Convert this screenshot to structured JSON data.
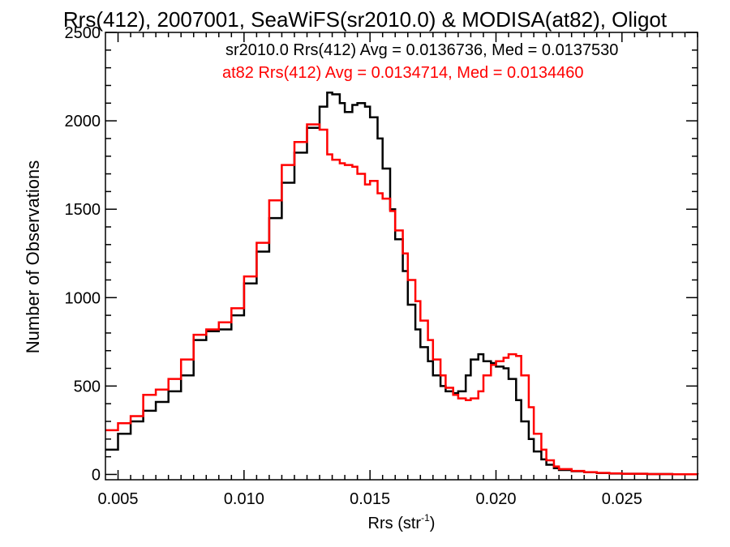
{
  "chart_data": {
    "type": "line",
    "title": "Rrs(412), 2007001, SeaWiFS(sr2010.0) & MODISA(at82), Oligot",
    "xlabel_main": "Rrs (str",
    "xlabel_sup": "-1",
    "xlabel_end": ")",
    "ylabel": "Number of Observations",
    "xlim": [
      0.0045,
      0.028
    ],
    "ylim": [
      -30,
      2500
    ],
    "x_ticks": [
      {
        "value": 0.005,
        "label": "0.005"
      },
      {
        "value": 0.01,
        "label": "0.010"
      },
      {
        "value": 0.015,
        "label": "0.015"
      },
      {
        "value": 0.02,
        "label": "0.020"
      },
      {
        "value": 0.025,
        "label": "0.025"
      }
    ],
    "y_ticks": [
      {
        "value": 0,
        "label": "0"
      },
      {
        "value": 500,
        "label": "500"
      },
      {
        "value": 1000,
        "label": "1000"
      },
      {
        "value": 1500,
        "label": "1500"
      },
      {
        "value": 2000,
        "label": "2000"
      },
      {
        "value": 2500,
        "label": "2500"
      }
    ],
    "legend": [
      {
        "text": "sr2010.0 Rrs(412) Avg = 0.0136736, Med = 0.0137530",
        "color": "#000000"
      },
      {
        "text": "at82 Rrs(412) Avg = 0.0134714, Med = 0.0134460",
        "color": "#ff0000"
      }
    ],
    "series": [
      {
        "color": "#000000",
        "x": [
          0.0045,
          0.005,
          0.0055,
          0.006,
          0.0065,
          0.007,
          0.0075,
          0.008,
          0.0085,
          0.009,
          0.0095,
          0.01,
          0.0105,
          0.011,
          0.0115,
          0.012,
          0.0125,
          0.013,
          0.0133,
          0.0135,
          0.0138,
          0.014,
          0.0143,
          0.0145,
          0.0148,
          0.015,
          0.0153,
          0.0155,
          0.0158,
          0.016,
          0.0163,
          0.0165,
          0.0168,
          0.017,
          0.0173,
          0.0175,
          0.0178,
          0.018,
          0.0183,
          0.0185,
          0.0188,
          0.019,
          0.0193,
          0.0195,
          0.0198,
          0.02,
          0.0203,
          0.0205,
          0.0208,
          0.021,
          0.0213,
          0.0215,
          0.0218,
          0.022,
          0.0223,
          0.0225,
          0.023,
          0.0235,
          0.024,
          0.0245,
          0.025,
          0.026,
          0.027,
          0.028
        ],
        "y": [
          140,
          230,
          300,
          360,
          410,
          470,
          560,
          760,
          810,
          820,
          900,
          1080,
          1260,
          1450,
          1650,
          1820,
          1960,
          2080,
          2160,
          2150,
          2100,
          2050,
          2090,
          2100,
          2080,
          2020,
          1900,
          1730,
          1500,
          1330,
          1150,
          960,
          820,
          720,
          640,
          560,
          500,
          470,
          460,
          470,
          560,
          650,
          680,
          640,
          630,
          610,
          600,
          540,
          420,
          300,
          200,
          130,
          85,
          55,
          35,
          25,
          18,
          12,
          8,
          5,
          4,
          2,
          1,
          0
        ]
      },
      {
        "color": "#ff0000",
        "x": [
          0.0045,
          0.005,
          0.0055,
          0.006,
          0.0065,
          0.007,
          0.0075,
          0.008,
          0.0085,
          0.009,
          0.0095,
          0.01,
          0.0105,
          0.011,
          0.0115,
          0.012,
          0.0125,
          0.013,
          0.0133,
          0.0135,
          0.0138,
          0.014,
          0.0143,
          0.0145,
          0.0148,
          0.015,
          0.0153,
          0.0155,
          0.0158,
          0.016,
          0.0163,
          0.0165,
          0.0168,
          0.017,
          0.0173,
          0.0175,
          0.0178,
          0.018,
          0.0183,
          0.0185,
          0.0188,
          0.019,
          0.0193,
          0.0195,
          0.0198,
          0.02,
          0.0203,
          0.0205,
          0.0208,
          0.021,
          0.0213,
          0.0215,
          0.0218,
          0.022,
          0.0223,
          0.0225,
          0.023,
          0.0235,
          0.024,
          0.0245,
          0.025,
          0.026,
          0.027,
          0.028
        ],
        "y": [
          250,
          290,
          330,
          450,
          480,
          540,
          650,
          790,
          820,
          860,
          940,
          1120,
          1310,
          1550,
          1750,
          1880,
          1980,
          1950,
          1810,
          1780,
          1760,
          1750,
          1740,
          1700,
          1640,
          1660,
          1590,
          1560,
          1490,
          1380,
          1250,
          1100,
          980,
          870,
          760,
          650,
          560,
          490,
          450,
          430,
          420,
          430,
          470,
          560,
          620,
          640,
          660,
          680,
          670,
          560,
          380,
          230,
          140,
          80,
          45,
          30,
          20,
          13,
          9,
          6,
          4,
          2,
          1,
          0
        ]
      }
    ]
  }
}
